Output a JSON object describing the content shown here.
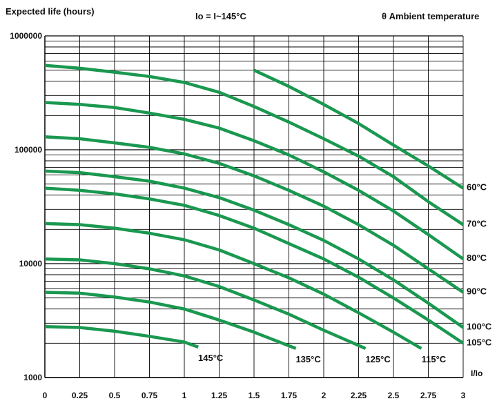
{
  "chart_data": {
    "type": "line",
    "ylabel": "Expected life (hours)",
    "subtitle": "Io = I~145°C",
    "legend_title": "θ Ambient temperature",
    "xlabel": "I/Io",
    "y_scale": "log",
    "ylim": [
      1000,
      1000000
    ],
    "xlim": [
      0,
      3
    ],
    "x_ticks": [
      "0",
      "0.25",
      "0.5",
      "0.75",
      "1",
      "1.25",
      "1.5",
      "1.75",
      "2",
      "2.25",
      "2.5",
      "2.75",
      "3"
    ],
    "y_ticks": [
      "1000",
      "10000",
      "100000",
      "1000000"
    ],
    "grid": true,
    "line_color": "#1a9850",
    "series": [
      {
        "name": "60°C",
        "x": [
          1.5,
          1.75,
          2.0,
          2.25,
          2.5,
          2.75,
          3.0
        ],
        "y": [
          500000,
          360000,
          250000,
          170000,
          110000,
          72000,
          46000
        ]
      },
      {
        "name": "70°C",
        "x": [
          0,
          0.25,
          0.5,
          0.75,
          1.0,
          1.25,
          1.5,
          1.75,
          2.0,
          2.25,
          2.5,
          2.75,
          3.0
        ],
        "y": [
          550000,
          520000,
          480000,
          440000,
          390000,
          320000,
          240000,
          175000,
          125000,
          88000,
          58000,
          35000,
          22000
        ]
      },
      {
        "name": "80°C",
        "x": [
          0,
          0.25,
          0.5,
          0.75,
          1.0,
          1.25,
          1.5,
          1.75,
          2.0,
          2.25,
          2.5,
          2.75,
          3.0
        ],
        "y": [
          260000,
          250000,
          235000,
          210000,
          185000,
          155000,
          120000,
          90000,
          64000,
          44000,
          29000,
          18000,
          11000
        ]
      },
      {
        "name": "90°C",
        "x": [
          0,
          0.25,
          0.5,
          0.75,
          1.0,
          1.25,
          1.5,
          1.75,
          2.0,
          2.25,
          2.5,
          2.75,
          3.0
        ],
        "y": [
          130000,
          125000,
          115000,
          105000,
          92000,
          76000,
          59000,
          44000,
          32000,
          22000,
          14500,
          9000,
          5600
        ]
      },
      {
        "name": "100°C",
        "x": [
          0,
          0.25,
          0.5,
          0.75,
          1.0,
          1.25,
          1.5,
          1.75,
          2.0,
          2.25,
          2.5,
          2.75,
          3.0
        ],
        "y": [
          65000,
          63000,
          58000,
          53000,
          46000,
          38000,
          29500,
          22000,
          16000,
          11000,
          7200,
          4500,
          2750
        ]
      },
      {
        "name": "105°C",
        "x": [
          0,
          0.25,
          0.5,
          0.75,
          1.0,
          1.25,
          1.5,
          1.75,
          2.0,
          2.25,
          2.5,
          2.75,
          3.0
        ],
        "y": [
          46000,
          44000,
          41000,
          37000,
          32500,
          26500,
          20500,
          15000,
          11000,
          7600,
          5000,
          3200,
          2000
        ]
      },
      {
        "name": "115°C",
        "x": [
          0,
          0.25,
          0.5,
          0.75,
          1.0,
          1.25,
          1.5,
          1.75,
          2.0,
          2.25,
          2.5,
          2.7
        ],
        "y": [
          22500,
          22000,
          20500,
          18500,
          16200,
          13200,
          10000,
          7500,
          5400,
          3700,
          2500,
          1800
        ]
      },
      {
        "name": "125°C",
        "x": [
          0,
          0.25,
          0.5,
          0.75,
          1.0,
          1.25,
          1.5,
          1.75,
          2.0,
          2.3
        ],
        "y": [
          11000,
          10800,
          10000,
          9000,
          7800,
          6300,
          4800,
          3600,
          2600,
          1800
        ]
      },
      {
        "name": "135°C",
        "x": [
          0,
          0.25,
          0.5,
          0.75,
          1.0,
          1.25,
          1.5,
          1.8
        ],
        "y": [
          5600,
          5500,
          5100,
          4600,
          4000,
          3200,
          2500,
          1800
        ]
      },
      {
        "name": "145°C",
        "x": [
          0,
          0.25,
          0.5,
          0.75,
          1.0,
          1.1
        ],
        "y": [
          2800,
          2750,
          2550,
          2300,
          2050,
          1850
        ]
      }
    ]
  }
}
